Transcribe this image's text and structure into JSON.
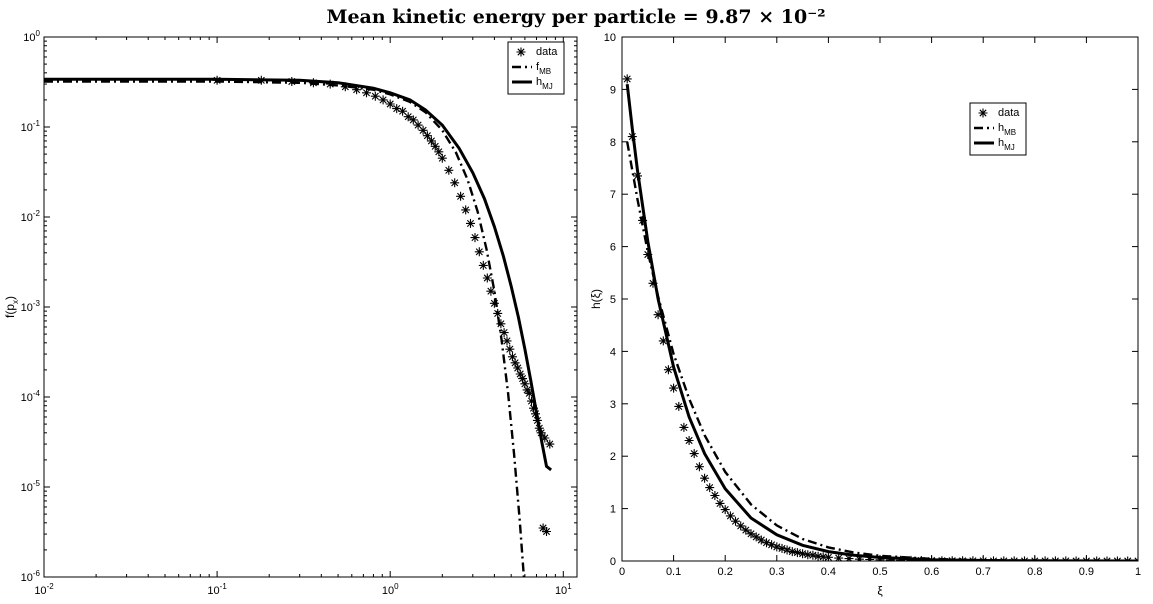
{
  "figure": {
    "title": "Mean kinetic energy per particle = 9.87 × 10⁻²"
  },
  "chart_data": [
    {
      "type": "line",
      "xlabel": "p",
      "xlabel_sub": "x",
      "ylabel": "f(p",
      "ylabel_sub": "x",
      "ylabel_close": ")",
      "xscale": "log",
      "yscale": "log",
      "xlim": [
        0.01,
        12
      ],
      "ylim": [
        1e-06,
        1
      ],
      "x_tick_labels": [
        {
          "base": "10",
          "exp": "-2",
          "value": 0.01
        },
        {
          "base": "10",
          "exp": "-1",
          "value": 0.1
        },
        {
          "base": "10",
          "exp": "0",
          "value": 1
        },
        {
          "base": "10",
          "exp": "1",
          "value": 10
        }
      ],
      "y_tick_labels": [
        {
          "base": "10",
          "exp": "-6",
          "value": 1e-06
        },
        {
          "base": "10",
          "exp": "-5",
          "value": 1e-05
        },
        {
          "base": "10",
          "exp": "-4",
          "value": 0.0001
        },
        {
          "base": "10",
          "exp": "-3",
          "value": 0.001
        },
        {
          "base": "10",
          "exp": "-2",
          "value": 0.01
        },
        {
          "base": "10",
          "exp": "-1",
          "value": 0.1
        },
        {
          "base": "10",
          "exp": "0",
          "value": 1
        }
      ],
      "grid": false,
      "legend_position": "top-right",
      "series": [
        {
          "name": "data",
          "legend_base": "data",
          "legend_sub": "",
          "style": "asterisk",
          "x": [
            0.1,
            0.18,
            0.27,
            0.36,
            0.45,
            0.55,
            0.64,
            0.73,
            0.82,
            0.91,
            1.0,
            1.09,
            1.18,
            1.27,
            1.36,
            1.45,
            1.55,
            1.64,
            1.73,
            1.82,
            1.91,
            2.0,
            2.18,
            2.36,
            2.55,
            2.73,
            2.91,
            3.09,
            3.27,
            3.45,
            3.64,
            3.82,
            4.0,
            4.18,
            4.36,
            4.55,
            4.73,
            4.91,
            5.09,
            5.27,
            5.45,
            5.64,
            5.82,
            6.0,
            6.18,
            6.36,
            6.55,
            6.73,
            6.91,
            7.09,
            7.27,
            7.45,
            7.64,
            7.82,
            8.0,
            8.36
          ],
          "y": [
            0.33,
            0.33,
            0.32,
            0.31,
            0.3,
            0.28,
            0.26,
            0.24,
            0.22,
            0.2,
            0.18,
            0.16,
            0.15,
            0.13,
            0.12,
            0.105,
            0.092,
            0.08,
            0.07,
            0.061,
            0.053,
            0.045,
            0.033,
            0.024,
            0.017,
            0.012,
            0.0085,
            0.0059,
            0.0041,
            0.0029,
            0.0021,
            0.0015,
            0.0011,
            0.00085,
            0.00065,
            0.00052,
            0.00042,
            0.00034,
            0.00028,
            0.00024,
            0.00021,
            0.00018,
            0.00016,
            0.00014,
            0.00012,
            0.00011,
            9e-05,
            7.5e-05,
            6.5e-05,
            5.5e-05,
            4.5e-05,
            4e-05,
            3.5e-06,
            3.5e-05,
            3.2e-06,
            3e-05
          ]
        },
        {
          "name": "f_MB",
          "legend_base": "f",
          "legend_sub": "MB",
          "style": "dashdot",
          "x": [
            0.01,
            0.05,
            0.1,
            0.3,
            0.5,
            0.8,
            1.0,
            1.3,
            1.6,
            2.0,
            2.4,
            2.8,
            3.2,
            3.6,
            4.0,
            4.4,
            4.8,
            5.2,
            5.6,
            6.0
          ],
          "y": [
            0.32,
            0.32,
            0.32,
            0.31,
            0.29,
            0.26,
            0.23,
            0.19,
            0.146,
            0.092,
            0.052,
            0.026,
            0.0115,
            0.0044,
            0.0015,
            0.00043,
            0.00011,
            2.3e-05,
            4.3e-06,
            7e-07
          ]
        },
        {
          "name": "h_MJ",
          "legend_base": "h",
          "legend_sub": "MJ",
          "style": "solid",
          "x": [
            0.01,
            0.05,
            0.1,
            0.3,
            0.5,
            0.8,
            1.0,
            1.3,
            1.6,
            2.0,
            2.5,
            3.0,
            3.5,
            4.0,
            4.5,
            5.0,
            5.5,
            6.0,
            6.5,
            7.0,
            7.5,
            8.0,
            8.5
          ],
          "y": [
            0.34,
            0.34,
            0.34,
            0.33,
            0.31,
            0.27,
            0.24,
            0.2,
            0.155,
            0.105,
            0.058,
            0.031,
            0.016,
            0.0078,
            0.0037,
            0.0017,
            0.00077,
            0.00034,
            0.00015,
            6.7e-05,
            3.2e-05,
            1.7e-05,
            1.55e-05
          ]
        }
      ]
    },
    {
      "type": "line",
      "xlabel": "ξ",
      "ylabel": "h(ξ)",
      "xscale": "linear",
      "yscale": "linear",
      "xlim": [
        0,
        1
      ],
      "ylim": [
        0,
        10
      ],
      "x_ticks": [
        0,
        0.1,
        0.2,
        0.3,
        0.4,
        0.5,
        0.6,
        0.7,
        0.8,
        0.9,
        1
      ],
      "x_tick_labels": [
        "0",
        "0.1",
        "0.2",
        "0.3",
        "0.4",
        "0.5",
        "0.6",
        "0.7",
        "0.8",
        "0.9",
        "1"
      ],
      "y_ticks": [
        0,
        1,
        2,
        3,
        4,
        5,
        6,
        7,
        8,
        9,
        10
      ],
      "y_tick_labels": [
        "0",
        "1",
        "2",
        "3",
        "4",
        "5",
        "6",
        "7",
        "8",
        "9",
        "10"
      ],
      "grid": false,
      "legend_position": "top-right",
      "series": [
        {
          "name": "data",
          "legend_base": "data",
          "legend_sub": "",
          "style": "asterisk",
          "x": [
            0.01,
            0.02,
            0.03,
            0.04,
            0.05,
            0.06,
            0.07,
            0.08,
            0.09,
            0.1,
            0.11,
            0.12,
            0.13,
            0.14,
            0.15,
            0.16,
            0.17,
            0.18,
            0.19,
            0.2,
            0.21,
            0.22,
            0.23,
            0.24,
            0.25,
            0.26,
            0.27,
            0.28,
            0.29,
            0.3,
            0.31,
            0.32,
            0.33,
            0.34,
            0.35,
            0.36,
            0.37,
            0.38,
            0.39,
            0.4,
            0.42,
            0.44,
            0.46,
            0.48,
            0.5,
            0.52,
            0.54,
            0.56,
            0.58,
            0.6,
            0.62,
            0.64,
            0.66,
            0.68,
            0.7,
            0.72,
            0.74,
            0.76,
            0.78,
            0.8,
            0.82,
            0.84,
            0.86,
            0.88,
            0.9,
            0.92,
            0.94,
            0.96,
            0.98,
            1.0
          ],
          "y": [
            9.2,
            8.1,
            7.35,
            6.5,
            5.85,
            5.3,
            4.7,
            4.2,
            3.65,
            3.3,
            2.95,
            2.55,
            2.3,
            2.05,
            1.8,
            1.58,
            1.4,
            1.25,
            1.1,
            0.98,
            0.86,
            0.76,
            0.67,
            0.59,
            0.52,
            0.46,
            0.4,
            0.35,
            0.31,
            0.27,
            0.24,
            0.21,
            0.18,
            0.16,
            0.14,
            0.12,
            0.11,
            0.09,
            0.08,
            0.07,
            0.055,
            0.045,
            0.035,
            0.028,
            0.022,
            0.018,
            0.014,
            0.011,
            0.009,
            0.007,
            0.006,
            0.005,
            0.004,
            0.003,
            0.003,
            0.002,
            0.002,
            0.0015,
            0.001,
            0.001,
            0.001,
            0.001,
            0.001,
            0.0,
            0.0,
            0.0,
            0.0,
            0.0,
            0.0,
            0.0
          ]
        },
        {
          "name": "h_MB",
          "legend_base": "h",
          "legend_sub": "MB",
          "style": "dashdot",
          "x": [
            0.01,
            0.03,
            0.05,
            0.07,
            0.1,
            0.13,
            0.16,
            0.2,
            0.25,
            0.3,
            0.35,
            0.4,
            0.45,
            0.5,
            0.6,
            0.7,
            0.8,
            0.9,
            1.0
          ],
          "y": [
            8.0,
            6.9,
            5.9,
            5.05,
            3.95,
            3.1,
            2.4,
            1.7,
            1.08,
            0.68,
            0.42,
            0.26,
            0.16,
            0.1,
            0.04,
            0.015,
            0.006,
            0.002,
            0.001
          ]
        },
        {
          "name": "h_MJ",
          "legend_base": "h",
          "legend_sub": "MJ",
          "style": "solid",
          "x": [
            0.01,
            0.02,
            0.03,
            0.05,
            0.07,
            0.1,
            0.13,
            0.16,
            0.2,
            0.25,
            0.3,
            0.35,
            0.4,
            0.45,
            0.5,
            0.6,
            0.7,
            0.8,
            0.9,
            1.0
          ],
          "y": [
            9.1,
            8.25,
            7.45,
            6.1,
            5.0,
            3.7,
            2.75,
            2.05,
            1.38,
            0.82,
            0.5,
            0.3,
            0.18,
            0.11,
            0.066,
            0.024,
            0.009,
            0.003,
            0.001,
            0.0005
          ]
        }
      ]
    }
  ]
}
